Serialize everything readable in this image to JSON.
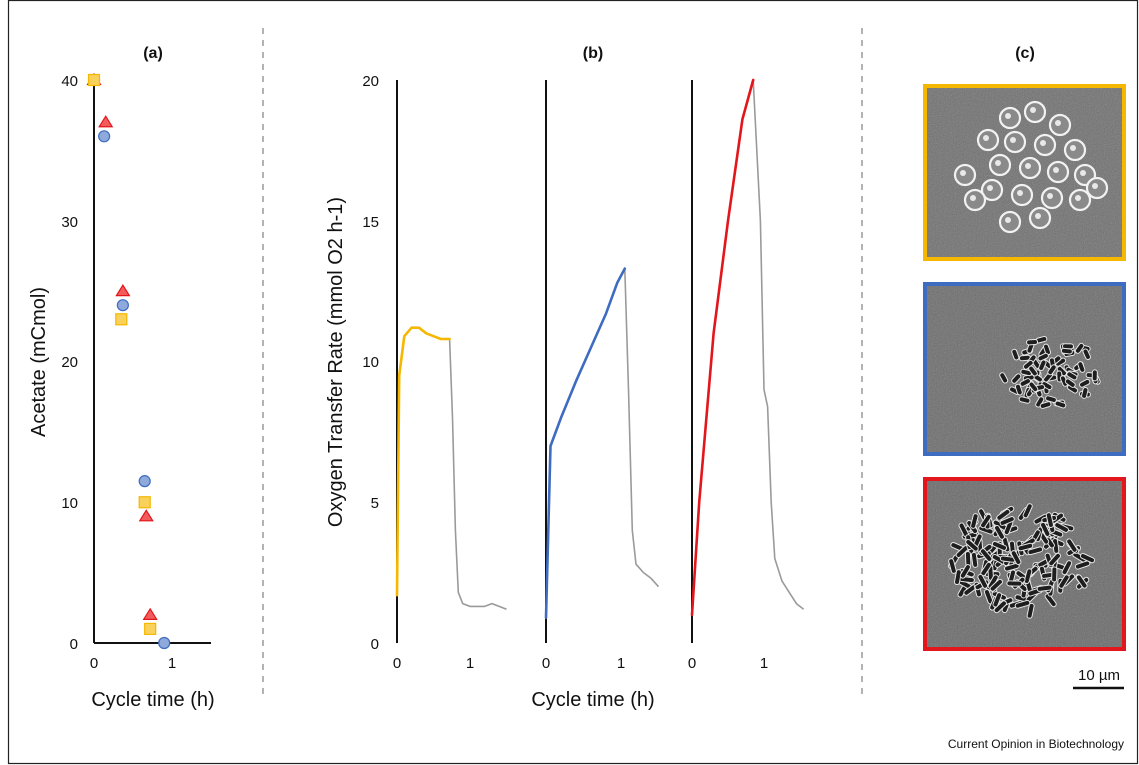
{
  "figure": {
    "credit": "Current Opinion in Biotechnology",
    "panel_a_label": "(a)",
    "panel_b_label": "(b)",
    "panel_c_label": "(c)",
    "scale_bar_label": "10 µm"
  },
  "colors": {
    "yellow": "#F5B700",
    "yellow_fill": "#FAD15A",
    "blue": "#3D6CC0",
    "blue_fill": "#8EA9DB",
    "red": "#E3161B",
    "red_fill": "#F25C5C",
    "gray": "#9A9A9A",
    "micrograph_bg": "#6E6E6E"
  },
  "chart_data": [
    {
      "type": "scatter",
      "panel": "(a)",
      "ylabel": "Acetate (mCmol)",
      "xlabel": "Cycle time (h)",
      "xlim": [
        0,
        1.5
      ],
      "ylim": [
        0,
        40
      ],
      "xticks": [
        "0",
        "1"
      ],
      "yticks": [
        "0",
        "10",
        "20",
        "30",
        "40"
      ],
      "grid": false,
      "series": [
        {
          "marker": "triangle",
          "color": "red",
          "x": [
            0.0,
            0.15,
            0.37,
            0.67,
            0.72
          ],
          "y": [
            40,
            37,
            25,
            9,
            2
          ]
        },
        {
          "marker": "circle",
          "color": "blue",
          "x": [
            0.0,
            0.13,
            0.37,
            0.65,
            0.9
          ],
          "y": [
            40,
            36,
            24,
            11.5,
            0
          ]
        },
        {
          "marker": "square",
          "color": "yellow",
          "x": [
            0.0,
            0.35,
            0.65,
            0.72
          ],
          "y": [
            40,
            23,
            10,
            1
          ]
        }
      ]
    },
    {
      "type": "line",
      "panel": "(b)",
      "ylabel": "Oxygen Transfer Rate (mmol O2 h-1)",
      "xlabel": "Cycle time (h)",
      "ylim": [
        0,
        20
      ],
      "yticks": [
        "0",
        "5",
        "10",
        "15",
        "20"
      ],
      "xticks": [
        "0",
        "1"
      ],
      "grid": false,
      "subplots": [
        {
          "xlim": [
            0,
            1.5
          ],
          "active_color": "yellow",
          "active": [
            [
              0,
              1.7
            ],
            [
              0.03,
              9.5
            ],
            [
              0.1,
              10.9
            ],
            [
              0.2,
              11.2
            ],
            [
              0.3,
              11.2
            ],
            [
              0.4,
              11.0
            ],
            [
              0.5,
              10.9
            ],
            [
              0.6,
              10.8
            ],
            [
              0.72,
              10.8
            ]
          ],
          "decline": [
            [
              0.72,
              10.8
            ],
            [
              0.76,
              8
            ],
            [
              0.8,
              4
            ],
            [
              0.84,
              1.8
            ],
            [
              0.9,
              1.4
            ],
            [
              1.0,
              1.3
            ],
            [
              1.2,
              1.3
            ],
            [
              1.3,
              1.4
            ],
            [
              1.4,
              1.3
            ],
            [
              1.5,
              1.2
            ]
          ]
        },
        {
          "xlim": [
            0,
            1.5
          ],
          "active_color": "blue",
          "active": [
            [
              0,
              0.9
            ],
            [
              0.06,
              7
            ],
            [
              0.2,
              8
            ],
            [
              0.4,
              9.3
            ],
            [
              0.6,
              10.5
            ],
            [
              0.8,
              11.7
            ],
            [
              0.95,
              12.8
            ],
            [
              1.05,
              13.3
            ]
          ],
          "decline": [
            [
              1.05,
              13.3
            ],
            [
              1.1,
              9
            ],
            [
              1.15,
              4
            ],
            [
              1.2,
              2.8
            ],
            [
              1.3,
              2.5
            ],
            [
              1.4,
              2.3
            ],
            [
              1.5,
              2.0
            ]
          ]
        },
        {
          "xlim": [
            0,
            1.5
          ],
          "active_color": "red",
          "active": [
            [
              0,
              1.0
            ],
            [
              0.1,
              5
            ],
            [
              0.3,
              11
            ],
            [
              0.5,
              15
            ],
            [
              0.7,
              18.6
            ],
            [
              0.85,
              20
            ]
          ],
          "decline": [
            [
              0.85,
              20
            ],
            [
              0.95,
              15
            ],
            [
              1.0,
              9
            ],
            [
              1.05,
              8.4
            ],
            [
              1.1,
              5
            ],
            [
              1.15,
              3
            ],
            [
              1.25,
              2.2
            ],
            [
              1.35,
              1.8
            ],
            [
              1.45,
              1.4
            ],
            [
              1.55,
              1.2
            ]
          ]
        }
      ]
    }
  ]
}
